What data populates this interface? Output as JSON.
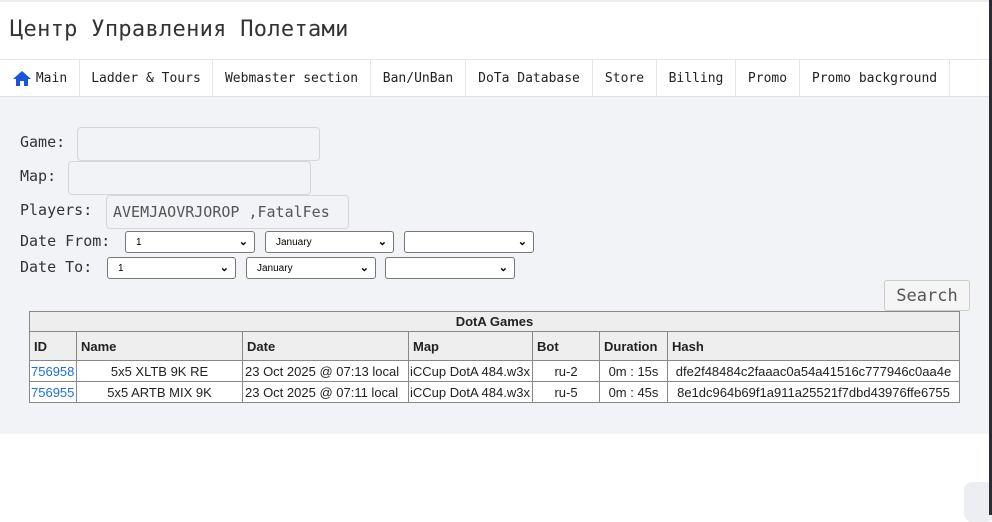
{
  "header": {
    "title": "Центр Управления Полетами"
  },
  "nav": {
    "items": [
      {
        "label": "Main",
        "icon": "home-icon"
      },
      {
        "label": "Ladder & Tours"
      },
      {
        "label": "Webmaster section"
      },
      {
        "label": "Ban/UnBan"
      },
      {
        "label": "DoTa Database"
      },
      {
        "label": "Store"
      },
      {
        "label": "Billing"
      },
      {
        "label": "Promo"
      },
      {
        "label": "Promo background"
      }
    ],
    "accent": "#1a56db"
  },
  "form": {
    "game_label": "Game:",
    "game_value": "",
    "map_label": "Map:",
    "map_value": "",
    "players_label": "Players:",
    "players_value": "AVEMJAOVRJOROP ,FatalFes",
    "date_from_label": "Date From:",
    "date_from": {
      "day": "1",
      "month": "January",
      "year": ""
    },
    "date_to_label": "Date To:",
    "date_to": {
      "day": "1",
      "month": "January",
      "year": ""
    },
    "search_label": "Search"
  },
  "table": {
    "caption": "DotA Games",
    "columns": [
      "ID",
      "Name",
      "Date",
      "Map",
      "Bot",
      "Duration",
      "Hash"
    ],
    "rows": [
      [
        "756958",
        "5x5 XLTB 9K RE",
        "23 Oct 2025 @ 07:13 local",
        "iCCup DotA 484.w3x",
        "ru-2",
        "0m : 15s",
        "dfe2f48484c2faaac0a54a41516c777946c0aa4e"
      ],
      [
        "756955",
        "5x5 ARTB MIX 9K",
        "23 Oct 2025 @ 07:11 local",
        "iCCup DotA 484.w3x",
        "ru-5",
        "0m : 45s",
        "8e1dc964b69f1a911a25521f7dbd43976ffe6755"
      ]
    ]
  }
}
